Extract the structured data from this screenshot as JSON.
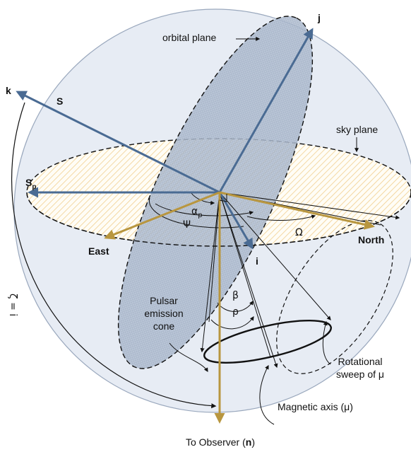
{
  "labels": {
    "k": "k",
    "j": "j",
    "i": "i",
    "S": "S",
    "Sp_base": "S",
    "Sp_sub": "p",
    "orbital_plane": "orbital plane",
    "sky_plane": "sky plane",
    "east": "East",
    "north": "North",
    "alpha_base": "α",
    "alpha_sub": "p",
    "psi": "Ψ",
    "omega": "Ω",
    "beta": "β",
    "rho": "ρ",
    "zeta_eq_i": "ζ = i",
    "pulsar_cone": [
      "Pulsar",
      "emission",
      "cone"
    ],
    "rotational_sweep": [
      "Rotational",
      "sweep of μ"
    ],
    "magnetic_axis": "Magnetic axis (μ)",
    "observer_prefix": "To Observer (",
    "observer_n": "n",
    "observer_suffix": ")"
  },
  "colors": {
    "blue_vector": "#4a6b93",
    "gold_vector": "#b8963f",
    "sphere_fill": "#e4e9f2",
    "orbital_fill": "#aab8cc",
    "sky_hatch": "#f1cf8f",
    "sphere_stroke": "#9aa8bd"
  }
}
